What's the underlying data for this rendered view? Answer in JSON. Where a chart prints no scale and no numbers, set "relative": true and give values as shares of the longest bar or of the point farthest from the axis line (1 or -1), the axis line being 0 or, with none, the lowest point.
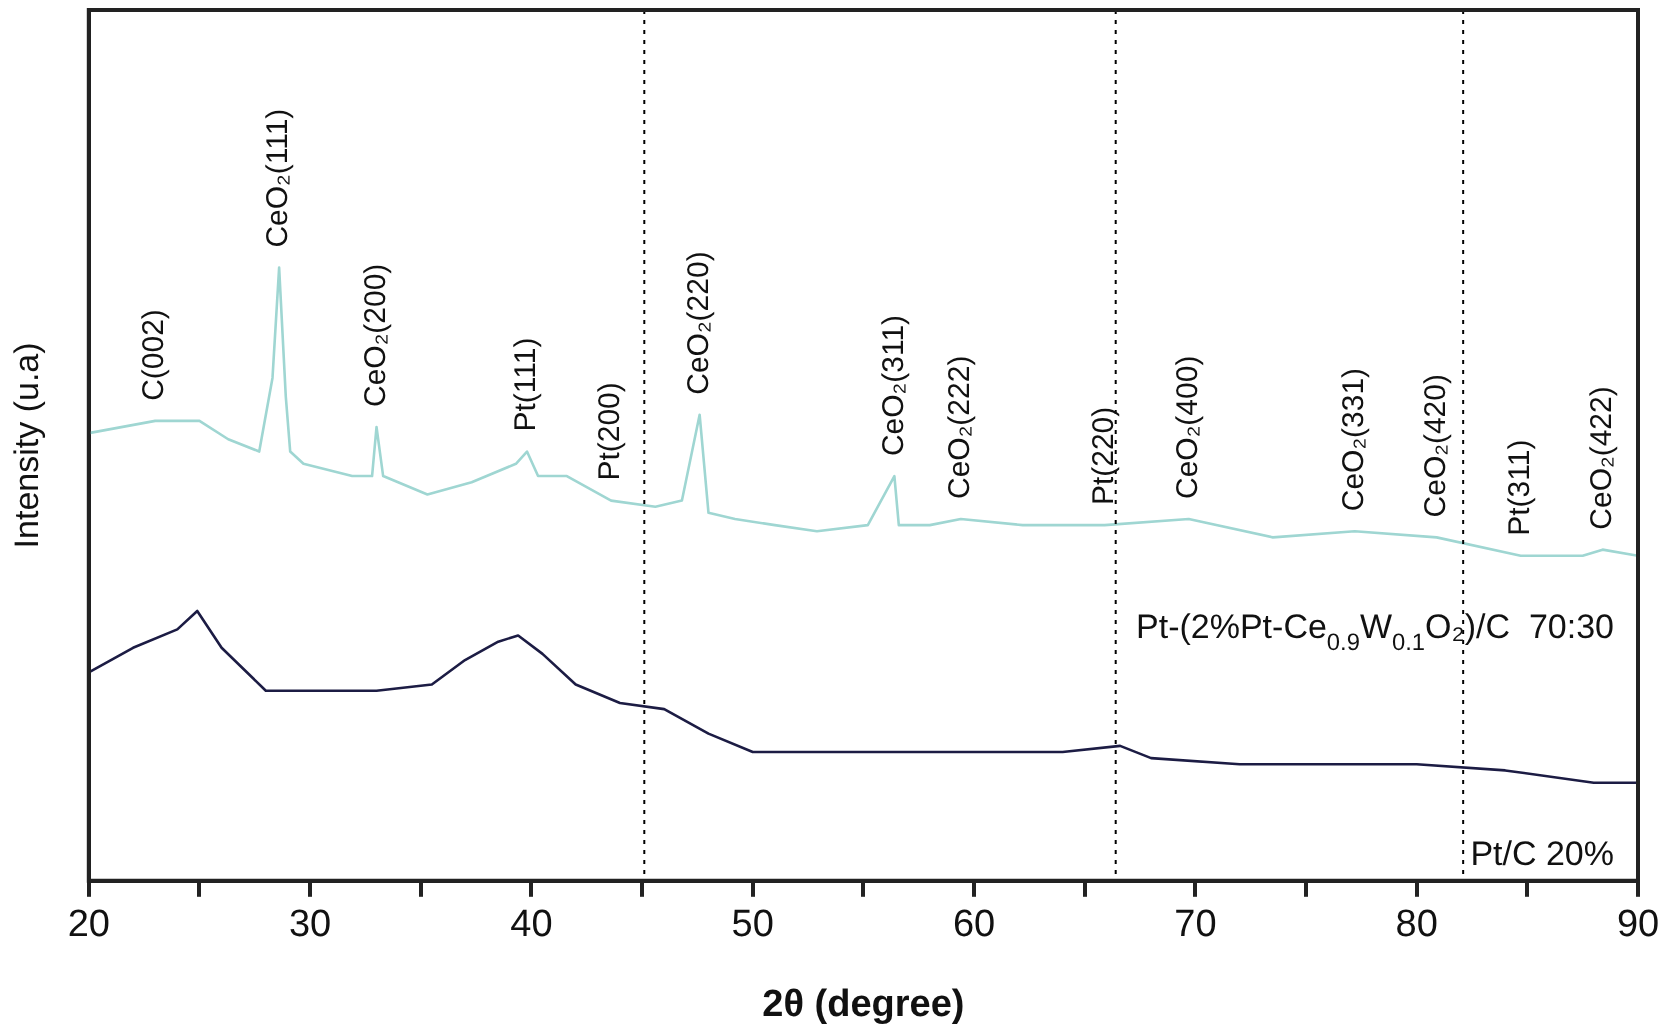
{
  "chart_data": {
    "type": "line",
    "relative": true,
    "xlabel": "2θ (degree)",
    "ylabel": "Intensity (u.a)",
    "xlim": [
      20,
      90
    ],
    "xticks": [
      20,
      {
        "value": 25,
        "label": null
      },
      30,
      {
        "value": 35,
        "label": null
      },
      40,
      {
        "value": 45,
        "label": null
      },
      50,
      {
        "value": 55,
        "label": null
      },
      60,
      {
        "value": 65,
        "label": null
      },
      70,
      {
        "value": 75,
        "label": null
      },
      80,
      {
        "value": 85,
        "label": null
      },
      90
    ],
    "grid": false,
    "legend": false,
    "marker": "none",
    "series": [
      {
        "name": "Pt-(2%Pt-Ce$_{0.9}$W$_{0.1}$O₂)/C  70:30",
        "color": "#9fd6d2",
        "x": [
          20,
          23,
          25,
          26.3,
          27.7,
          28.3,
          28.6,
          28.9,
          29.1,
          29.7,
          31.9,
          32.8,
          33.0,
          33.3,
          35.3,
          37.3,
          39.3,
          39.8,
          40.3,
          41.6,
          43.6,
          45.6,
          46.8,
          47.6,
          48.0,
          49.2,
          51.0,
          52.9,
          55.2,
          56.4,
          56.6,
          58.0,
          59.4,
          62.2,
          65.9,
          69.7,
          73.5,
          77.2,
          80.9,
          84.7,
          87.5,
          88.4,
          90
        ],
        "values": [
          0.73,
          0.75,
          0.75,
          0.72,
          0.7,
          0.82,
          1,
          0.79,
          0.7,
          0.68,
          0.66,
          0.66,
          0.74,
          0.66,
          0.63,
          0.65,
          0.68,
          0.7,
          0.66,
          0.66,
          0.62,
          0.61,
          0.62,
          0.76,
          0.6,
          0.59,
          0.58,
          0.57,
          0.58,
          0.66,
          0.58,
          0.58,
          0.59,
          0.58,
          0.58,
          0.59,
          0.56,
          0.57,
          0.56,
          0.53,
          0.53,
          0.54,
          0.53
        ]
      },
      {
        "name": "Pt/C 20%",
        "color": "#1c1c44",
        "x": [
          20,
          22,
          24,
          24.9,
          26,
          28,
          30,
          33,
          35.5,
          37,
          38.5,
          39.4,
          40.5,
          42,
          44,
          46,
          48,
          50,
          53,
          56,
          60,
          64,
          66.6,
          68,
          72,
          76,
          80,
          84,
          88,
          90
        ],
        "values": [
          0.34,
          0.38,
          0.41,
          0.44,
          0.38,
          0.31,
          0.31,
          0.31,
          0.32,
          0.36,
          0.39,
          0.4,
          0.37,
          0.32,
          0.29,
          0.28,
          0.24,
          0.21,
          0.21,
          0.21,
          0.21,
          0.21,
          0.22,
          0.2,
          0.19,
          0.19,
          0.19,
          0.18,
          0.16,
          0.16
        ]
      }
    ],
    "ref_lines": [
      {
        "axis": "x",
        "value": 45.1,
        "color": "#000000",
        "line_style": "dotted"
      },
      {
        "axis": "x",
        "value": 66.4,
        "color": "#000000",
        "line_style": "dotted"
      },
      {
        "axis": "x",
        "value": 82.1,
        "color": "#000000",
        "line_style": "dotted"
      }
    ],
    "annotations": [
      {
        "text": "C(002)",
        "x": 23,
        "y": 0.75
      },
      {
        "text": "CeO₂(111)",
        "x": 28.6,
        "y": 1
      },
      {
        "text": "CeO₂(200)",
        "x": 33.0,
        "y": 0.74
      },
      {
        "text": "Pt(111)",
        "x": 39.8,
        "y": 0.7
      },
      {
        "text": "Pt(200)",
        "x": 43.6,
        "y": 0.62
      },
      {
        "text": "CeO₂(220)",
        "x": 47.6,
        "y": 0.76
      },
      {
        "text": "CeO₂(311)",
        "x": 56.4,
        "y": 0.66
      },
      {
        "text": "CeO₂(222)",
        "x": 59.4,
        "y": 0.59
      },
      {
        "text": "Pt(220)",
        "x": 65.9,
        "y": 0.58
      },
      {
        "text": "CeO₂(400)",
        "x": 69.7,
        "y": 0.59
      },
      {
        "text": "CeO₂(331)",
        "x": 77.2,
        "y": 0.57
      },
      {
        "text": "CeO₂(420)",
        "x": 80.9,
        "y": 0.56
      },
      {
        "text": "Pt(311)",
        "x": 84.7,
        "y": 0.53
      },
      {
        "text": "CeO₂(422)",
        "x": 88.4,
        "y": 0.54
      }
    ]
  }
}
